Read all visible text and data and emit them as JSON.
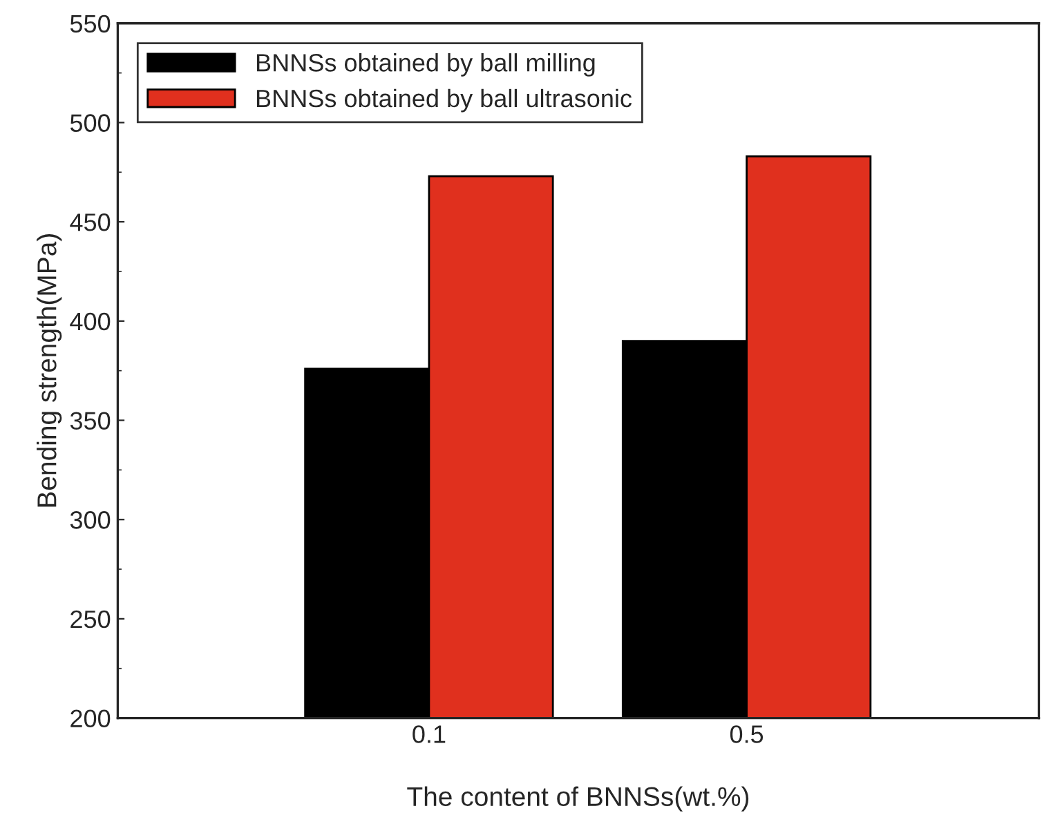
{
  "chart_data": {
    "type": "bar",
    "xlabel": "The content of BNNSs(wt.%)",
    "ylabel": "Bending strength(MPa)",
    "categories": [
      "0.1",
      "0.5"
    ],
    "series": [
      {
        "name": "BNNSs obtained by ball milling",
        "color": "#000000",
        "values": [
          376,
          390
        ]
      },
      {
        "name": "BNNSs obtained by ball ultrasonic",
        "color": "#e0301e",
        "values": [
          473,
          483
        ]
      }
    ],
    "ylim": [
      200,
      550
    ],
    "yticks": [
      200,
      250,
      300,
      350,
      400,
      450,
      500,
      550
    ],
    "legend": "top left",
    "grid": false
  }
}
